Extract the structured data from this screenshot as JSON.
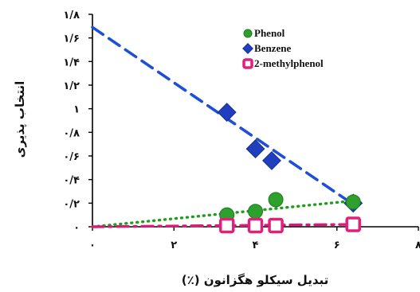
{
  "chart_data": {
    "type": "scatter",
    "xlabel": "تبدیل سیکلو هگزانون (٪)",
    "ylabel": "انتخاب پذیری",
    "xlim": [
      0,
      8
    ],
    "ylim": [
      0,
      1.8
    ],
    "x_ticks": [
      "۰",
      "۲",
      "۴",
      "۶",
      "۸"
    ],
    "y_ticks": [
      "۰",
      "۰/۲",
      "۰/۴",
      "۰/۶",
      "۰/۸",
      "۱",
      "۱/۲",
      "۱/۴",
      "۱/۶",
      "۱/۸"
    ],
    "legend": "top-right",
    "grid": false,
    "series": [
      {
        "name": "Phenol",
        "marker": "circle",
        "color": "#2ea02e",
        "x": [
          3.3,
          4.0,
          4.5,
          6.4
        ],
        "y": [
          0.1,
          0.13,
          0.23,
          0.21
        ],
        "trendline": {
          "style": "dotted",
          "color": "#1aa01a",
          "x": [
            0,
            6.4
          ],
          "y": [
            0.0,
            0.22
          ]
        }
      },
      {
        "name": "Benzene",
        "marker": "diamond",
        "color": "#1f3fbf",
        "x": [
          3.3,
          4.0,
          4.4,
          6.4
        ],
        "y": [
          0.97,
          0.66,
          0.56,
          0.2
        ],
        "trendline": {
          "style": "dashed",
          "color": "#1f4fd8",
          "x": [
            0,
            6.4
          ],
          "y": [
            1.69,
            0.19
          ]
        }
      },
      {
        "name": "2-methylphenol",
        "marker": "square",
        "color": "#e0207a",
        "x": [
          3.3,
          4.0,
          4.5,
          6.4
        ],
        "y": [
          0.01,
          0.01,
          0.01,
          0.02
        ],
        "trendline": {
          "style": "dashdot",
          "color": "#d81b74",
          "x": [
            0,
            6.4
          ],
          "y": [
            0.0,
            0.02
          ]
        }
      }
    ]
  }
}
